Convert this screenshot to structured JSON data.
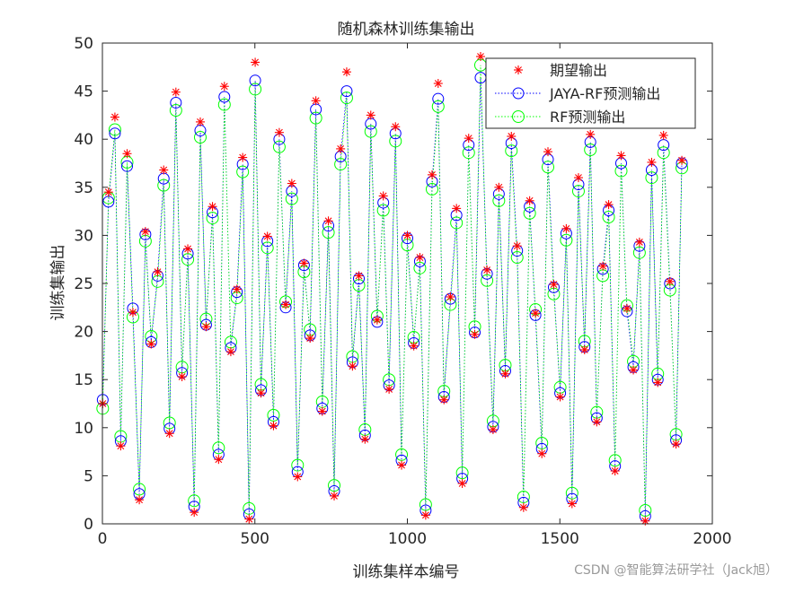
{
  "chart_data": {
    "type": "scatter",
    "title": "随机森林训练集输出",
    "xlabel": "训练集样本编号",
    "ylabel": "训练集输出",
    "xlim": [
      0,
      2000
    ],
    "ylim": [
      0,
      50
    ],
    "x_ticks": [
      "0",
      "500",
      "1000",
      "1500",
      "2000"
    ],
    "y_ticks": [
      "0",
      "5",
      "10",
      "15",
      "20",
      "25",
      "30",
      "35",
      "40",
      "45",
      "50"
    ],
    "n_samples": 1900,
    "legend_position": "top-right",
    "grid": false,
    "series": [
      {
        "name": "期望输出",
        "marker": "asterisk",
        "color": "#ff0000",
        "line": "none"
      },
      {
        "name": "JAYA-RF预测输出",
        "marker": "circle",
        "color": "#0000ff",
        "line": "dotted"
      },
      {
        "name": "RF预测输出",
        "marker": "circle",
        "color": "#00ff00",
        "line": "dotted"
      }
    ],
    "x": [
      1,
      20,
      41,
      60,
      81,
      100,
      121,
      141,
      160,
      181,
      201,
      220,
      241,
      261,
      280,
      301,
      321,
      340,
      361,
      381,
      400,
      421,
      441,
      460,
      481,
      501,
      520,
      541,
      561,
      580,
      601,
      621,
      640,
      661,
      681,
      700,
      721,
      741,
      760,
      781,
      801,
      820,
      841,
      861,
      880,
      901,
      921,
      940,
      961,
      981,
      1000,
      1021,
      1041,
      1060,
      1081,
      1101,
      1120,
      1141,
      1161,
      1180,
      1201,
      1221,
      1240,
      1261,
      1281,
      1300,
      1321,
      1341,
      1360,
      1381,
      1401,
      1420,
      1441,
      1461,
      1480,
      1501,
      1521,
      1540,
      1561,
      1581,
      1600,
      1621,
      1641,
      1660,
      1681,
      1701,
      1720,
      1741,
      1761,
      1780,
      1801,
      1821,
      1840,
      1861,
      1881,
      1900
    ],
    "expected": [
      12.5,
      34.5,
      42.3,
      8.1,
      38.5,
      22.0,
      2.5,
      30.4,
      18.7,
      26.2,
      36.8,
      9.4,
      44.9,
      15.3,
      28.6,
      1.2,
      41.8,
      20.5,
      33.0,
      6.7,
      45.5,
      17.9,
      24.4,
      38.1,
      0.5,
      48.0,
      13.6,
      29.9,
      10.2,
      40.7,
      22.8,
      35.4,
      4.9,
      27.1,
      19.3,
      44.0,
      11.7,
      31.5,
      2.9,
      39.0,
      47.0,
      16.4,
      25.8,
      8.8,
      42.5,
      21.2,
      34.1,
      14.0,
      41.3,
      6.1,
      30.0,
      18.5,
      27.7,
      0.9,
      36.3,
      45.8,
      12.9,
      23.6,
      32.8,
      4.2,
      40.1,
      19.7,
      48.6,
      26.4,
      9.8,
      35.0,
      15.6,
      40.3,
      28.9,
      1.7,
      33.6,
      21.9,
      7.3,
      38.7,
      24.9,
      13.2,
      30.7,
      2.1,
      36.0,
      18.1,
      40.5,
      10.6,
      26.8,
      33.2,
      5.5,
      38.3,
      22.4,
      16.0,
      29.3,
      0.3,
      37.6,
      14.7,
      40.4,
      25.2,
      8.3,
      37.8
    ],
    "jaya_rf": [
      12.9,
      33.5,
      40.6,
      8.6,
      37.2,
      22.4,
      3.1,
      30.1,
      18.9,
      25.8,
      35.9,
      9.9,
      43.8,
      15.7,
      28.1,
      1.8,
      40.9,
      20.7,
      32.4,
      7.2,
      44.4,
      18.3,
      24.1,
      37.4,
      1.0,
      46.1,
      13.9,
      29.4,
      10.6,
      40.0,
      22.5,
      34.6,
      5.4,
      26.9,
      19.6,
      43.1,
      12.0,
      31.0,
      3.4,
      38.2,
      45.0,
      16.8,
      25.5,
      9.2,
      41.6,
      21.0,
      33.4,
      14.4,
      40.6,
      6.6,
      29.7,
      18.8,
      27.3,
      1.4,
      35.6,
      44.2,
      13.2,
      23.4,
      32.1,
      4.7,
      39.4,
      19.9,
      46.4,
      26.0,
      10.1,
      34.3,
      15.9,
      39.6,
      28.4,
      2.2,
      33.0,
      21.7,
      7.8,
      37.9,
      24.6,
      13.6,
      30.2,
      2.6,
      35.3,
      18.4,
      39.7,
      11.0,
      26.5,
      32.6,
      6.0,
      37.5,
      22.1,
      16.3,
      28.9,
      0.8,
      36.8,
      15.0,
      39.4,
      25.0,
      8.7,
      37.5
    ],
    "rf": [
      12.0,
      33.9,
      41.0,
      9.1,
      37.6,
      21.5,
      3.6,
      29.4,
      19.5,
      25.2,
      35.2,
      10.5,
      43.0,
      16.3,
      27.5,
      2.4,
      40.2,
      21.3,
      31.8,
      7.9,
      43.6,
      18.9,
      23.5,
      36.6,
      1.6,
      45.2,
      14.5,
      28.7,
      11.3,
      39.2,
      23.1,
      33.8,
      6.1,
      26.2,
      20.2,
      42.2,
      12.7,
      30.3,
      4.0,
      37.4,
      44.3,
      17.4,
      24.8,
      9.8,
      40.8,
      21.6,
      32.6,
      15.0,
      39.8,
      7.2,
      29.0,
      19.4,
      26.6,
      2.0,
      34.8,
      43.4,
      13.8,
      22.8,
      31.3,
      5.3,
      38.6,
      20.5,
      47.7,
      25.3,
      10.7,
      33.6,
      16.5,
      38.8,
      27.7,
      2.8,
      32.3,
      22.3,
      8.4,
      37.1,
      23.9,
      14.2,
      29.5,
      3.2,
      34.6,
      19.0,
      38.9,
      11.6,
      25.8,
      31.9,
      6.6,
      36.7,
      22.7,
      16.9,
      28.2,
      1.4,
      36.0,
      15.6,
      38.6,
      24.3,
      9.3,
      37.0
    ]
  },
  "watermark": "CSDN @智能算法研学社（Jack旭）"
}
